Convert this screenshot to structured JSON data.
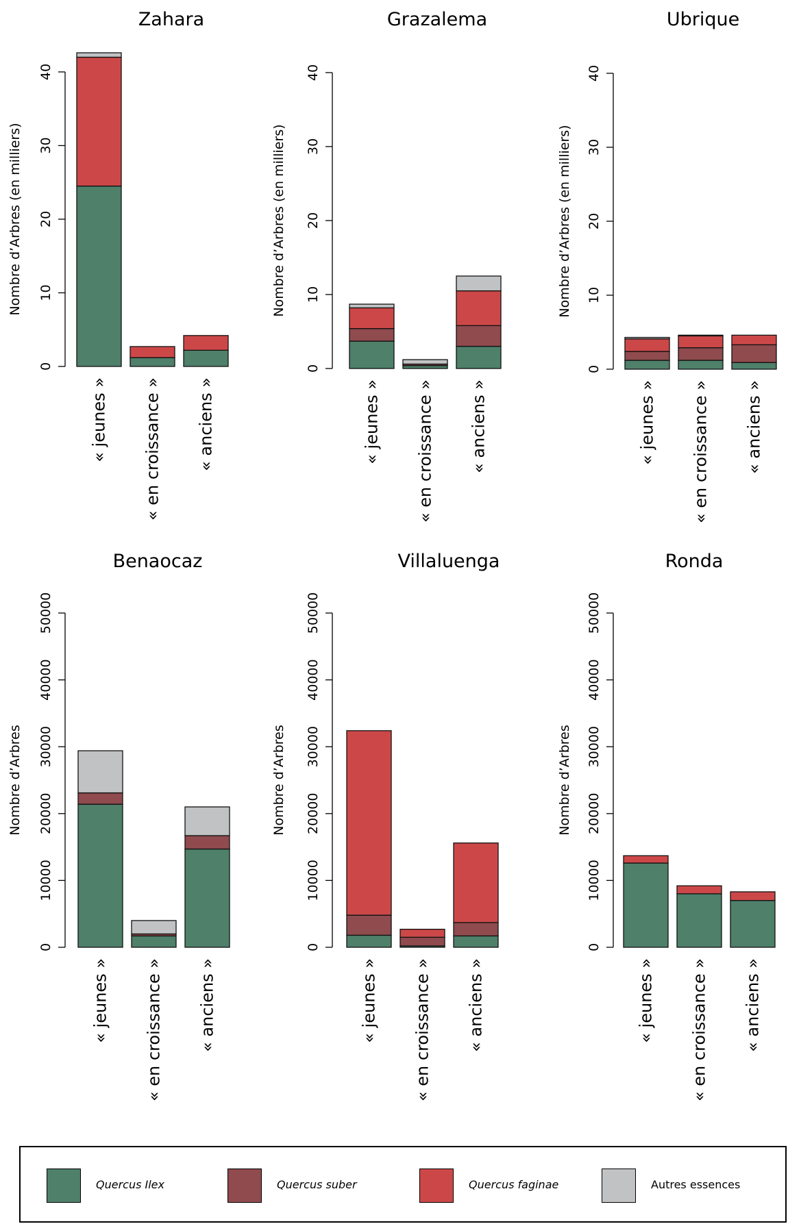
{
  "species": [
    {
      "key": "ilex",
      "name": "Quercus Ilex",
      "color": "#4e806a",
      "italic": true
    },
    {
      "key": "suber",
      "name": "Quercus suber",
      "color": "#8f4b4e",
      "italic": true
    },
    {
      "key": "faginae",
      "name": "Quercus faginae",
      "color": "#cc4848",
      "italic": true
    },
    {
      "key": "autres",
      "name": "Autres essences",
      "color": "#c0c2c4",
      "italic": false
    }
  ],
  "chart_data": [
    {
      "type": "bar",
      "stacked": true,
      "title": "Zahara",
      "ylabel": "Nombre d’Arbres (en milliers)",
      "xlabel": "",
      "ylim": [
        0,
        40
      ],
      "yticks": [
        0,
        10,
        20,
        30,
        40
      ],
      "categories": [
        "« jeunes »",
        "« en croissance »",
        "« anciens »"
      ],
      "series": [
        {
          "name": "Quercus Ilex",
          "values": [
            24.5,
            1.2,
            2.2
          ]
        },
        {
          "name": "Quercus suber",
          "values": [
            0,
            0,
            0
          ]
        },
        {
          "name": "Quercus faginae",
          "values": [
            17.5,
            1.5,
            2.0
          ]
        },
        {
          "name": "Autres essences",
          "values": [
            0.6,
            0,
            0
          ]
        }
      ]
    },
    {
      "type": "bar",
      "stacked": true,
      "title": "Grazalema",
      "ylabel": "Nombre d’Arbres (en milliers)",
      "xlabel": "",
      "ylim": [
        0,
        40
      ],
      "yticks": [
        0,
        10,
        20,
        30,
        40
      ],
      "categories": [
        "« jeunes »",
        "« en croissance »",
        "« anciens »"
      ],
      "series": [
        {
          "name": "Quercus Ilex",
          "values": [
            3.7,
            0.4,
            3.0
          ]
        },
        {
          "name": "Quercus suber",
          "values": [
            1.7,
            0.2,
            2.8
          ]
        },
        {
          "name": "Quercus faginae",
          "values": [
            2.8,
            0,
            4.7
          ]
        },
        {
          "name": "Autres essences",
          "values": [
            0.5,
            0.6,
            2.0
          ]
        }
      ]
    },
    {
      "type": "bar",
      "stacked": true,
      "title": "Ubrique",
      "ylabel": "Nombre d’Arbres (en milliers)",
      "xlabel": "",
      "ylim": [
        0,
        40
      ],
      "yticks": [
        0,
        10,
        20,
        30,
        40
      ],
      "categories": [
        "« jeunes »",
        "« en croissance »",
        "« anciens »"
      ],
      "series": [
        {
          "name": "Quercus Ilex",
          "values": [
            1.2,
            1.2,
            0.9
          ]
        },
        {
          "name": "Quercus suber",
          "values": [
            1.2,
            1.7,
            2.4
          ]
        },
        {
          "name": "Quercus faginae",
          "values": [
            1.7,
            1.6,
            1.3
          ]
        },
        {
          "name": "Autres essences",
          "values": [
            0.2,
            0.1,
            0
          ]
        }
      ]
    },
    {
      "type": "bar",
      "stacked": true,
      "title": "Benaocaz",
      "ylabel": "Nombre d’Arbres",
      "xlabel": "",
      "ylim": [
        0,
        50000
      ],
      "yticks": [
        0,
        10000,
        20000,
        30000,
        40000,
        50000
      ],
      "categories": [
        "« jeunes »",
        "« en croissance »",
        "« anciens »"
      ],
      "series": [
        {
          "name": "Quercus Ilex",
          "values": [
            21400,
            1700,
            14700
          ]
        },
        {
          "name": "Quercus suber",
          "values": [
            1700,
            300,
            2000
          ]
        },
        {
          "name": "Quercus faginae",
          "values": [
            0,
            0,
            0
          ]
        },
        {
          "name": "Autres essences",
          "values": [
            6300,
            2000,
            4300
          ]
        }
      ]
    },
    {
      "type": "bar",
      "stacked": true,
      "title": "Villaluenga",
      "ylabel": "Nombre d’Arbres",
      "xlabel": "",
      "ylim": [
        0,
        50000
      ],
      "yticks": [
        0,
        10000,
        20000,
        30000,
        40000,
        50000
      ],
      "categories": [
        "« jeunes »",
        "« en croissance »",
        "« anciens »"
      ],
      "series": [
        {
          "name": "Quercus Ilex",
          "values": [
            1800,
            200,
            1700
          ]
        },
        {
          "name": "Quercus suber",
          "values": [
            3000,
            1300,
            2000
          ]
        },
        {
          "name": "Quercus faginae",
          "values": [
            27600,
            1200,
            11900
          ]
        },
        {
          "name": "Autres essences",
          "values": [
            0,
            0,
            0
          ]
        }
      ]
    },
    {
      "type": "bar",
      "stacked": true,
      "title": "Ronda",
      "ylabel": "Nombre d’Arbres",
      "xlabel": "",
      "ylim": [
        0,
        50000
      ],
      "yticks": [
        0,
        10000,
        20000,
        30000,
        40000,
        50000
      ],
      "categories": [
        "« jeunes »",
        "« en croissance »",
        "« anciens »"
      ],
      "series": [
        {
          "name": "Quercus Ilex",
          "values": [
            12600,
            8000,
            7000
          ]
        },
        {
          "name": "Quercus suber",
          "values": [
            0,
            0,
            0
          ]
        },
        {
          "name": "Quercus faginae",
          "values": [
            1100,
            1200,
            1300
          ]
        },
        {
          "name": "Autres essences",
          "values": [
            0,
            0,
            0
          ]
        }
      ]
    }
  ]
}
